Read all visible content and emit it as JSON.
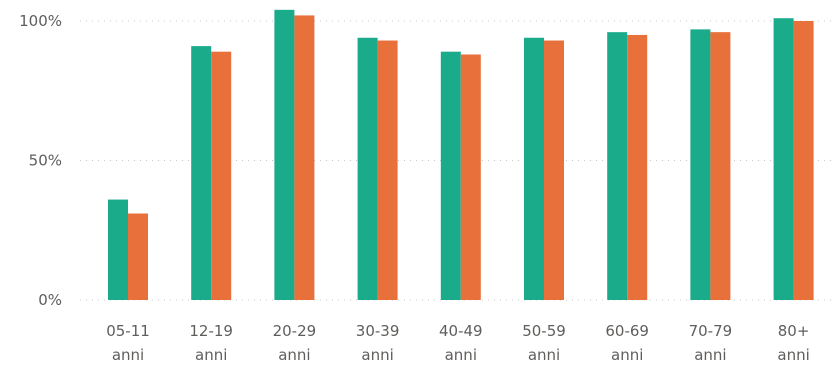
{
  "chart_data": {
    "type": "bar",
    "title": "",
    "xlabel": "",
    "ylabel": "",
    "categories": [
      [
        "05-11",
        "anni"
      ],
      [
        "12-19",
        "anni"
      ],
      [
        "20-29",
        "anni"
      ],
      [
        "30-39",
        "anni"
      ],
      [
        "40-49",
        "anni"
      ],
      [
        "50-59",
        "anni"
      ],
      [
        "60-69",
        "anni"
      ],
      [
        "70-79",
        "anni"
      ],
      [
        "80+",
        "anni"
      ]
    ],
    "series": [
      {
        "color": "#1aab8b",
        "values": [
          36,
          91,
          104,
          94,
          89,
          94,
          96,
          97,
          101
        ]
      },
      {
        "color": "#e8703a",
        "values": [
          31,
          89,
          102,
          93,
          88,
          93,
          95,
          96,
          100
        ]
      }
    ],
    "ylim": [
      0,
      100
    ],
    "yticks": [
      0,
      50,
      100
    ],
    "ytick_labels": [
      "0%",
      "50%",
      "100%"
    ],
    "grid": true,
    "legend": "none"
  }
}
